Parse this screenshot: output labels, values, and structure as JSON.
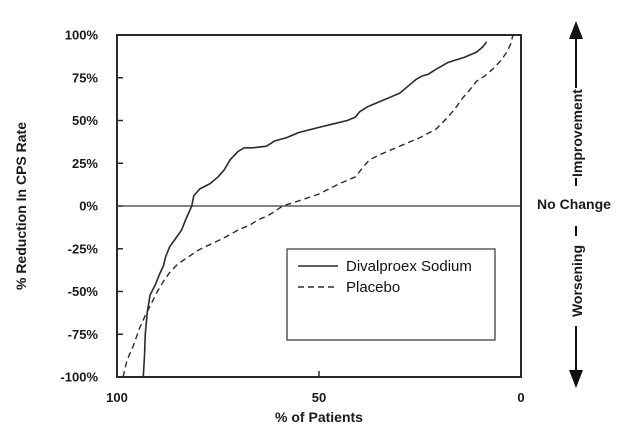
{
  "chart_data": {
    "type": "line",
    "xlabel": "% of Patients",
    "ylabel": "% Reduction In CPS Rate",
    "xlim": [
      100,
      0
    ],
    "ylim": [
      -100,
      100
    ],
    "x_ticks": [
      "100",
      "50",
      "0"
    ],
    "y_ticks": [
      "100%",
      "75%",
      "50%",
      "25%",
      "0%",
      "-25%",
      "-50%",
      "-75%",
      "-100%"
    ],
    "reference_line_label": "No Change",
    "improvement_label": "Improvement",
    "worsening_label": "Worsening",
    "series": [
      {
        "name": "Divalproex Sodium",
        "style": "solid",
        "color": "#2b2b2b",
        "x": [
          93.5,
          93.2,
          93.0,
          92.5,
          91.8,
          90.5,
          89.5,
          88.5,
          88.0,
          87.0,
          85.5,
          84.0,
          83.0,
          81.5,
          81.0,
          79.5,
          77.0,
          75.0,
          73.5,
          72.0,
          70.0,
          68.5,
          66.5,
          63.0,
          61.0,
          58.0,
          55.0,
          50.0,
          46.5,
          43.0,
          41.0,
          40.0,
          38.0,
          36.0,
          34.0,
          32.0,
          30.0,
          28.0,
          26.0,
          24.5,
          23.0,
          21.0,
          18.0,
          14.0,
          11.0,
          9.5,
          8.5
        ],
        "y": [
          -100,
          -88,
          -75,
          -62,
          -52,
          -46,
          -40,
          -35,
          -30,
          -24,
          -19,
          -14,
          -8,
          0,
          6,
          10,
          13,
          17,
          21,
          27,
          32,
          34,
          34,
          35,
          38,
          40,
          43,
          46,
          48,
          50,
          52,
          55,
          58,
          60,
          62,
          64,
          66,
          70,
          74,
          76,
          77,
          80,
          84,
          87,
          90,
          93,
          96
        ]
      },
      {
        "name": "Placebo",
        "style": "dashed",
        "color": "#2b2b2b",
        "x": [
          98.5,
          97.5,
          96.0,
          94.5,
          93.0,
          91.5,
          90.0,
          88.5,
          87.0,
          85.0,
          82.5,
          80.0,
          76.5,
          73.0,
          70.0,
          67.0,
          65.0,
          63.0,
          61.5,
          59.0,
          55.0,
          50.0,
          45.0,
          41.0,
          39.0,
          37.5,
          35.0,
          30.0,
          25.0,
          21.0,
          18.5,
          17.0,
          16.0,
          14.5,
          13.0,
          11.0,
          9.0,
          7.0,
          5.0,
          3.5,
          2.5,
          2.0
        ],
        "y": [
          -100,
          -90,
          -82,
          -72,
          -64,
          -57,
          -50,
          -44,
          -39,
          -34,
          -30,
          -26,
          -22,
          -18,
          -14,
          -11,
          -8,
          -6,
          -4,
          0,
          3,
          7,
          13,
          17,
          23,
          27,
          30,
          35,
          40,
          45,
          51,
          55,
          58,
          63,
          67,
          73,
          76,
          80,
          85,
          90,
          95,
          100
        ]
      }
    ]
  }
}
